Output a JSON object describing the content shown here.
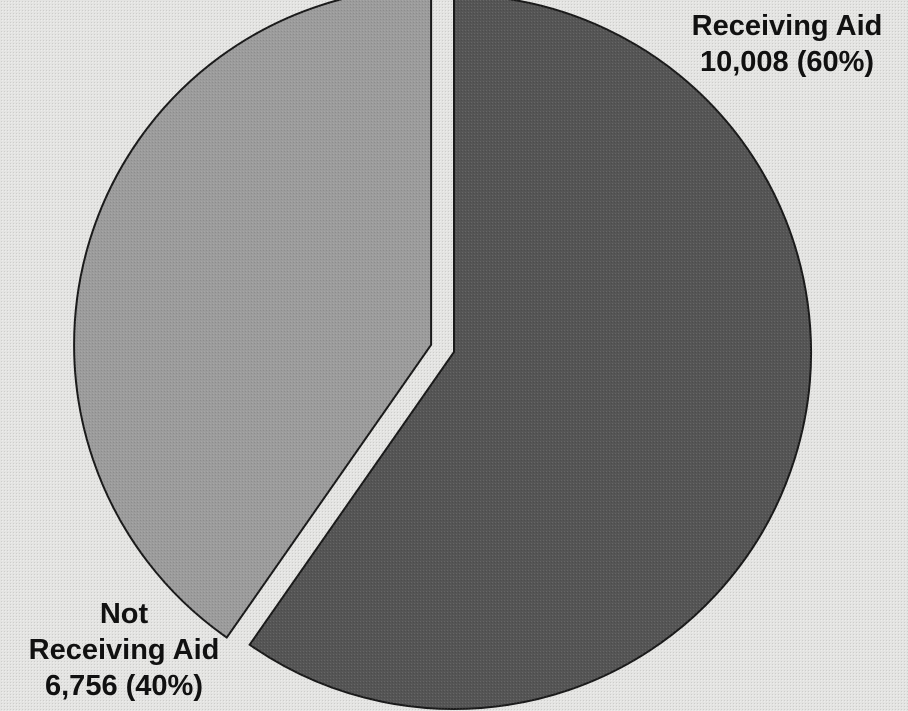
{
  "chart_data": {
    "type": "pie",
    "title": "",
    "slices": [
      {
        "label": "Receiving Aid",
        "value": 10008,
        "percent": 60,
        "value_text": "10,008 (60%)",
        "color": "#555555",
        "exploded": false
      },
      {
        "label": "Not Receiving Aid",
        "label_line1": "Not",
        "label_line2": "Receiving Aid",
        "value": 6756,
        "percent": 40,
        "value_text": "6,756 (40%)",
        "color": "#9c9c9c",
        "exploded": true
      }
    ],
    "start_angle": "12 o'clock",
    "direction": "clockwise",
    "legend": "none"
  }
}
